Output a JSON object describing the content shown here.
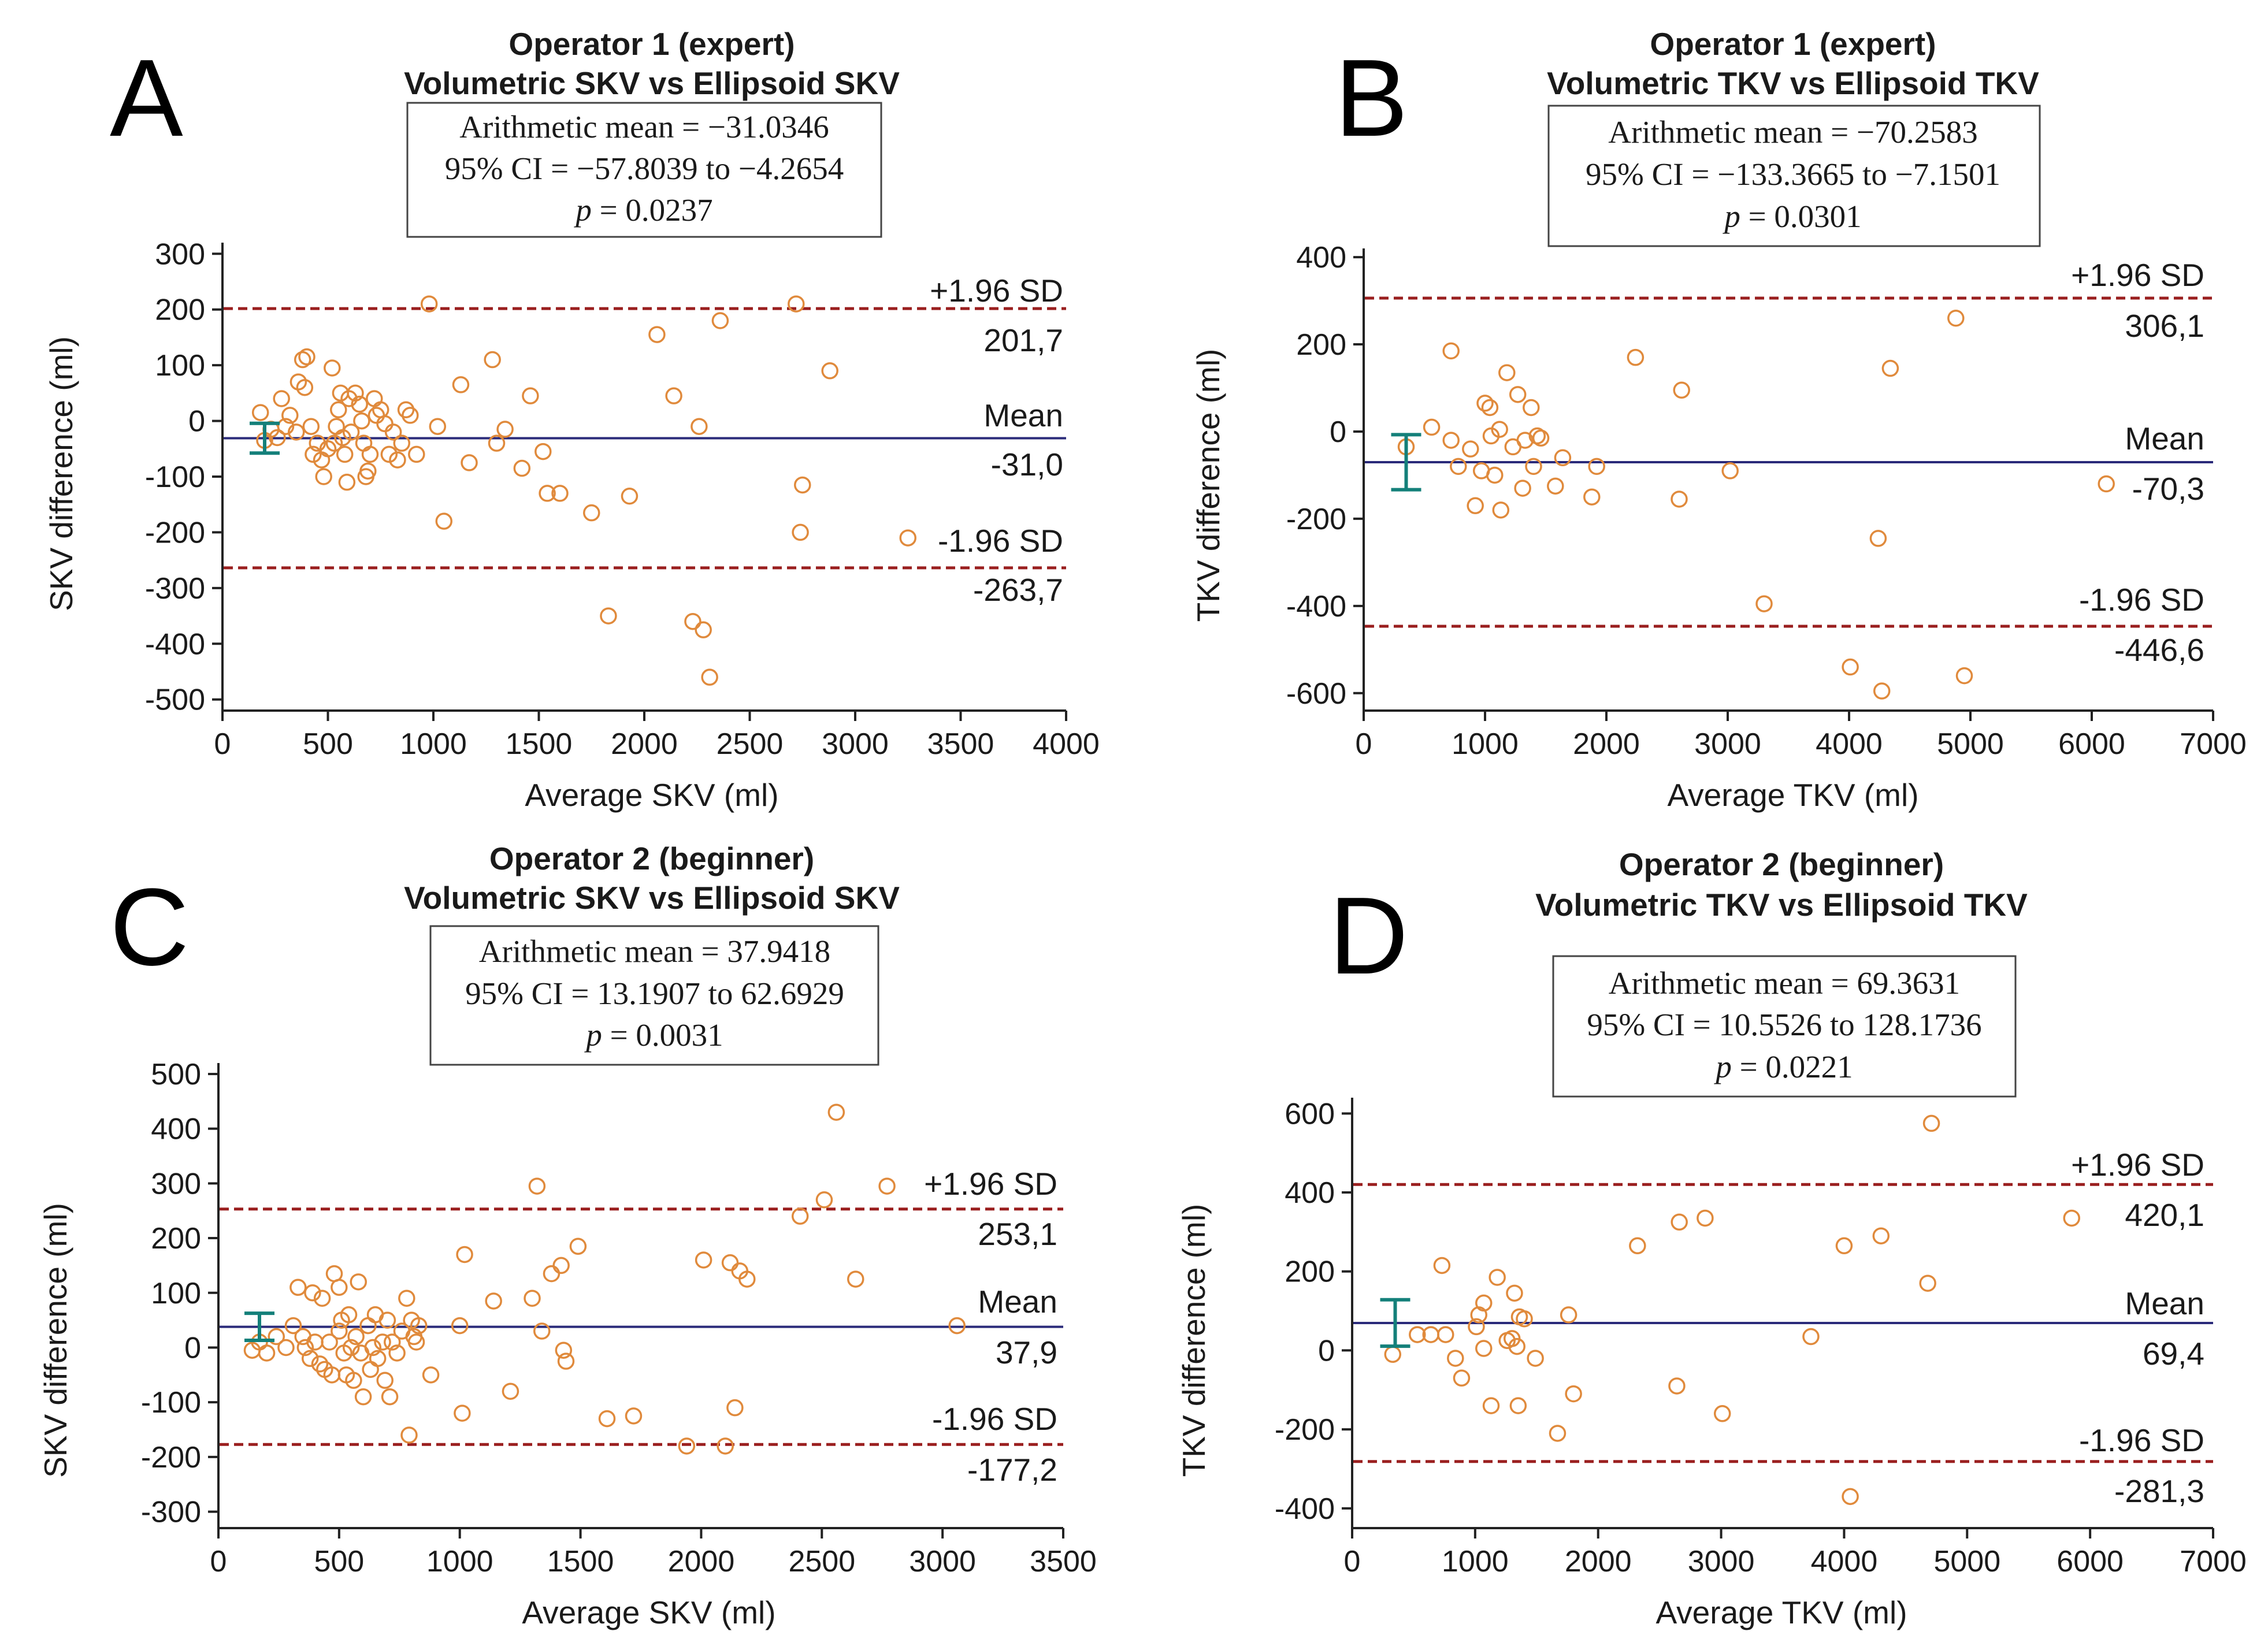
{
  "chart_data": [
    {
      "type": "scatter",
      "panel_letter": "A",
      "title": [
        "Operator 1 (expert)",
        "Volumetric SKV vs Ellipsoid SKV"
      ],
      "stats": {
        "line1": "Arithmetic mean =  −31.0346",
        "line2": "95% CI =  −57.8039 to  −4.2654",
        "p_label": "p",
        "p_rest": " = 0.0237"
      },
      "xlabel": "Average SKV (ml)",
      "ylabel": "SKV difference (ml)",
      "xlim": [
        0,
        4000
      ],
      "ylim": [
        -520,
        320
      ],
      "xticks": [
        0,
        500,
        1000,
        1500,
        2000,
        2500,
        3000,
        3500,
        4000
      ],
      "yticks": [
        300,
        200,
        100,
        0,
        -100,
        -200,
        -300,
        -400,
        -500
      ],
      "mean": -31.0,
      "upper_sd": 201.7,
      "lower_sd": -263.7,
      "labels": {
        "upper": "+1.96 SD",
        "mean": "Mean",
        "lower": "-1.96 SD",
        "upper_val": "201,7",
        "mean_val": "-31,0",
        "lower_val": "-263,7"
      },
      "ci": [
        -57.8,
        -4.3
      ],
      "ci_x": 200,
      "points": [
        [
          180,
          15
        ],
        [
          200,
          -35
        ],
        [
          230,
          -15
        ],
        [
          260,
          -30
        ],
        [
          280,
          40
        ],
        [
          300,
          -10
        ],
        [
          320,
          10
        ],
        [
          350,
          -20
        ],
        [
          360,
          70
        ],
        [
          380,
          110
        ],
        [
          390,
          60
        ],
        [
          400,
          115
        ],
        [
          420,
          -10
        ],
        [
          430,
          -60
        ],
        [
          450,
          -40
        ],
        [
          470,
          -70
        ],
        [
          480,
          -100
        ],
        [
          500,
          -50
        ],
        [
          520,
          95
        ],
        [
          530,
          -40
        ],
        [
          540,
          -10
        ],
        [
          550,
          20
        ],
        [
          560,
          50
        ],
        [
          570,
          -30
        ],
        [
          580,
          -60
        ],
        [
          590,
          -110
        ],
        [
          600,
          40
        ],
        [
          610,
          -20
        ],
        [
          630,
          50
        ],
        [
          650,
          30
        ],
        [
          660,
          0
        ],
        [
          670,
          -40
        ],
        [
          680,
          -100
        ],
        [
          690,
          -90
        ],
        [
          700,
          -60
        ],
        [
          720,
          40
        ],
        [
          730,
          10
        ],
        [
          750,
          20
        ],
        [
          770,
          -5
        ],
        [
          790,
          -60
        ],
        [
          810,
          -20
        ],
        [
          830,
          -70
        ],
        [
          850,
          -40
        ],
        [
          870,
          20
        ],
        [
          890,
          10
        ],
        [
          920,
          -60
        ],
        [
          980,
          210
        ],
        [
          1020,
          -10
        ],
        [
          1050,
          -180
        ],
        [
          1130,
          65
        ],
        [
          1170,
          -75
        ],
        [
          1280,
          110
        ],
        [
          1300,
          -40
        ],
        [
          1340,
          -15
        ],
        [
          1420,
          -85
        ],
        [
          1460,
          45
        ],
        [
          1520,
          -55
        ],
        [
          1540,
          -130
        ],
        [
          1600,
          -130
        ],
        [
          1750,
          -165
        ],
        [
          1830,
          -350
        ],
        [
          1930,
          -135
        ],
        [
          2060,
          155
        ],
        [
          2140,
          45
        ],
        [
          2230,
          -360
        ],
        [
          2260,
          -10
        ],
        [
          2280,
          -375
        ],
        [
          2310,
          -460
        ],
        [
          2360,
          180
        ],
        [
          2720,
          210
        ],
        [
          2740,
          -200
        ],
        [
          2750,
          -115
        ],
        [
          2880,
          90
        ],
        [
          3250,
          -210
        ]
      ]
    },
    {
      "type": "scatter",
      "panel_letter": "B",
      "title": [
        "Operator 1 (expert)",
        "Volumetric TKV vs Ellipsoid TKV"
      ],
      "stats": {
        "line1": "Arithmetic mean =  −70.2583",
        "line2": "95% CI =  −133.3665 to  −7.1501",
        "p_label": "p",
        "p_rest": " = 0.0301"
      },
      "xlabel": "Average TKV (ml)",
      "ylabel": "TKV difference (ml)",
      "xlim": [
        0,
        7000
      ],
      "ylim": [
        -640,
        420
      ],
      "xticks": [
        0,
        1000,
        2000,
        3000,
        4000,
        5000,
        6000,
        7000
      ],
      "yticks": [
        400,
        200,
        0,
        -200,
        -400,
        -600
      ],
      "mean": -70.3,
      "upper_sd": 306.1,
      "lower_sd": -446.6,
      "labels": {
        "upper": "+1.96 SD",
        "mean": "Mean",
        "lower": "-1.96 SD",
        "upper_val": "306,1",
        "mean_val": "-70,3",
        "lower_val": "-446,6"
      },
      "ci": [
        -133.4,
        -7.2
      ],
      "ci_x": 350,
      "points": [
        [
          350,
          -35
        ],
        [
          560,
          10
        ],
        [
          720,
          185
        ],
        [
          720,
          -20
        ],
        [
          780,
          -80
        ],
        [
          880,
          -40
        ],
        [
          920,
          -170
        ],
        [
          970,
          -90
        ],
        [
          1000,
          65
        ],
        [
          1040,
          55
        ],
        [
          1050,
          -10
        ],
        [
          1080,
          -100
        ],
        [
          1120,
          5
        ],
        [
          1130,
          -180
        ],
        [
          1180,
          135
        ],
        [
          1230,
          -35
        ],
        [
          1270,
          85
        ],
        [
          1310,
          -130
        ],
        [
          1330,
          -20
        ],
        [
          1380,
          55
        ],
        [
          1400,
          -80
        ],
        [
          1430,
          -10
        ],
        [
          1460,
          -15
        ],
        [
          1580,
          -125
        ],
        [
          1640,
          -60
        ],
        [
          1880,
          -150
        ],
        [
          1920,
          -80
        ],
        [
          2240,
          170
        ],
        [
          2600,
          -155
        ],
        [
          2620,
          95
        ],
        [
          3020,
          -90
        ],
        [
          3300,
          -395
        ],
        [
          4010,
          -540
        ],
        [
          4240,
          -245
        ],
        [
          4270,
          -595
        ],
        [
          4340,
          145
        ],
        [
          4880,
          260
        ],
        [
          4950,
          -560
        ],
        [
          6120,
          -120
        ]
      ]
    },
    {
      "type": "scatter",
      "panel_letter": "C",
      "title": [
        "Operator 2 (beginner)",
        "Volumetric SKV vs Ellipsoid SKV"
      ],
      "stats": {
        "line1": "Arithmetic mean = 37.9418",
        "line2": "95% CI = 13.1907 to 62.6929",
        "p_label": "p",
        "p_rest": " = 0.0031"
      },
      "xlabel": "Average SKV (ml)",
      "ylabel": "SKV difference (ml)",
      "xlim": [
        0,
        3500
      ],
      "ylim": [
        -330,
        520
      ],
      "xticks": [
        0,
        500,
        1000,
        1500,
        2000,
        2500,
        3000,
        3500
      ],
      "yticks": [
        500,
        400,
        300,
        200,
        100,
        0,
        -100,
        -200,
        -300
      ],
      "mean": 37.9,
      "upper_sd": 253.1,
      "lower_sd": -177.2,
      "labels": {
        "upper": "+1.96 SD",
        "mean": "Mean",
        "lower": "-1.96 SD",
        "upper_val": "253,1",
        "mean_val": "37,9",
        "lower_val": "-177,2"
      },
      "ci": [
        13.2,
        62.7
      ],
      "ci_x": 170,
      "points": [
        [
          140,
          -5
        ],
        [
          170,
          10
        ],
        [
          200,
          -10
        ],
        [
          240,
          20
        ],
        [
          280,
          0
        ],
        [
          310,
          40
        ],
        [
          330,
          110
        ],
        [
          350,
          20
        ],
        [
          360,
          0
        ],
        [
          380,
          -20
        ],
        [
          390,
          100
        ],
        [
          400,
          10
        ],
        [
          420,
          -30
        ],
        [
          430,
          90
        ],
        [
          440,
          -40
        ],
        [
          460,
          10
        ],
        [
          470,
          -50
        ],
        [
          480,
          135
        ],
        [
          500,
          30
        ],
        [
          500,
          110
        ],
        [
          510,
          50
        ],
        [
          520,
          -10
        ],
        [
          530,
          -50
        ],
        [
          540,
          60
        ],
        [
          550,
          0
        ],
        [
          560,
          -60
        ],
        [
          570,
          20
        ],
        [
          580,
          120
        ],
        [
          590,
          -10
        ],
        [
          600,
          -90
        ],
        [
          620,
          40
        ],
        [
          630,
          -40
        ],
        [
          640,
          0
        ],
        [
          650,
          60
        ],
        [
          660,
          -20
        ],
        [
          680,
          10
        ],
        [
          690,
          -60
        ],
        [
          700,
          50
        ],
        [
          710,
          -90
        ],
        [
          720,
          10
        ],
        [
          740,
          -10
        ],
        [
          760,
          30
        ],
        [
          780,
          90
        ],
        [
          790,
          -160
        ],
        [
          800,
          50
        ],
        [
          810,
          20
        ],
        [
          820,
          10
        ],
        [
          830,
          40
        ],
        [
          880,
          -50
        ],
        [
          1000,
          40
        ],
        [
          1010,
          -120
        ],
        [
          1020,
          170
        ],
        [
          1140,
          85
        ],
        [
          1210,
          -80
        ],
        [
          1300,
          90
        ],
        [
          1320,
          295
        ],
        [
          1340,
          30
        ],
        [
          1380,
          135
        ],
        [
          1420,
          150
        ],
        [
          1430,
          -5
        ],
        [
          1440,
          -25
        ],
        [
          1490,
          185
        ],
        [
          1610,
          -130
        ],
        [
          1720,
          -125
        ],
        [
          1940,
          -180
        ],
        [
          2010,
          160
        ],
        [
          2100,
          -180
        ],
        [
          2120,
          155
        ],
        [
          2140,
          -110
        ],
        [
          2160,
          140
        ],
        [
          2190,
          125
        ],
        [
          2410,
          240
        ],
        [
          2510,
          270
        ],
        [
          2560,
          430
        ],
        [
          2640,
          125
        ],
        [
          2770,
          295
        ],
        [
          3060,
          40
        ]
      ]
    },
    {
      "type": "scatter",
      "panel_letter": "D",
      "title": [
        "Operator 2 (beginner)",
        "Volumetric TKV vs Ellipsoid TKV"
      ],
      "stats": {
        "line1": "Arithmetic mean = 69.3631",
        "line2": "95% CI = 10.5526 to 128.1736",
        "p_label": "p",
        "p_rest": " = 0.0221"
      },
      "xlabel": "Average TKV (ml)",
      "ylabel": "TKV difference (ml)",
      "xlim": [
        0,
        7000
      ],
      "ylim": [
        -450,
        640
      ],
      "xticks": [
        0,
        1000,
        2000,
        3000,
        4000,
        5000,
        6000,
        7000
      ],
      "yticks": [
        600,
        400,
        200,
        0,
        -200,
        -400
      ],
      "mean": 69.4,
      "upper_sd": 420.1,
      "lower_sd": -281.3,
      "labels": {
        "upper": "+1.96 SD",
        "mean": "Mean",
        "lower": "-1.96 SD",
        "upper_val": "420,1",
        "mean_val": "69,4",
        "lower_val": "-281,3"
      },
      "ci": [
        10.6,
        128.2
      ],
      "ci_x": 350,
      "points": [
        [
          330,
          -10
        ],
        [
          530,
          40
        ],
        [
          640,
          40
        ],
        [
          730,
          215
        ],
        [
          760,
          40
        ],
        [
          840,
          -20
        ],
        [
          890,
          -70
        ],
        [
          1010,
          60
        ],
        [
          1030,
          90
        ],
        [
          1070,
          120
        ],
        [
          1070,
          5
        ],
        [
          1130,
          -140
        ],
        [
          1180,
          185
        ],
        [
          1260,
          25
        ],
        [
          1300,
          30
        ],
        [
          1320,
          145
        ],
        [
          1340,
          10
        ],
        [
          1350,
          -140
        ],
        [
          1360,
          85
        ],
        [
          1400,
          80
        ],
        [
          1490,
          -20
        ],
        [
          1670,
          -210
        ],
        [
          1760,
          90
        ],
        [
          1800,
          -110
        ],
        [
          2320,
          265
        ],
        [
          2640,
          -90
        ],
        [
          2660,
          325
        ],
        [
          2870,
          335
        ],
        [
          3010,
          -160
        ],
        [
          3730,
          35
        ],
        [
          4000,
          265
        ],
        [
          4050,
          -370
        ],
        [
          4300,
          290
        ],
        [
          4680,
          170
        ],
        [
          4710,
          575
        ],
        [
          5850,
          335
        ]
      ]
    }
  ]
}
